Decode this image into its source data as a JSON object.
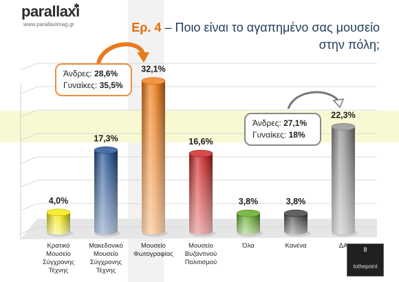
{
  "logo": {
    "name": "parallaxi",
    "url": "www.parallaximag.gr"
  },
  "title": {
    "number": "Ερ. 4",
    "dash": " – ",
    "line1": "Ποιο είναι το αγαπημένο σας μουσείο",
    "line2": "στην πόλη;"
  },
  "notes": {
    "museum_photo": {
      "men_label": "Άνδρες: ",
      "men_value": "28,6%",
      "women_label": "Γυναίκες: ",
      "women_value": "35,5%"
    },
    "dk": {
      "men_label": "Άνδρες: ",
      "men_value": "27,1%",
      "women_label": "Γυναίκες: ",
      "women_value": "18%"
    }
  },
  "brand": {
    "number": "8",
    "name": "tothepoint"
  },
  "chart_data": {
    "type": "bar",
    "categories": [
      [
        "Κρατικό",
        "Μουσείο",
        "Σύγχρονης",
        "Τέχνης"
      ],
      [
        "Μακεδονικό",
        "Μουσείο",
        "Σύγχρονης",
        "Τέχνης"
      ],
      [
        "Μουσείο",
        "Φωτογραφίας"
      ],
      [
        "Μουσείο",
        "Βυζαντινού",
        "Πολιτισμού"
      ],
      [
        "Όλα"
      ],
      [
        "Κανένα"
      ],
      [
        "ΔΑ"
      ]
    ],
    "values": [
      4.0,
      17.3,
      32.1,
      16.6,
      3.8,
      3.8,
      22.3
    ],
    "value_labels": [
      "4,0%",
      "17,3%",
      "32,1%",
      "16,6%",
      "3,8%",
      "3,8%",
      "22,3%"
    ],
    "colors": [
      "#f2e600",
      "#1f4e91",
      "#f07a12",
      "#cc1f1f",
      "#5aa51e",
      "#3a3a3a",
      "#8e8e8e"
    ],
    "ylim": [
      0,
      35
    ]
  }
}
